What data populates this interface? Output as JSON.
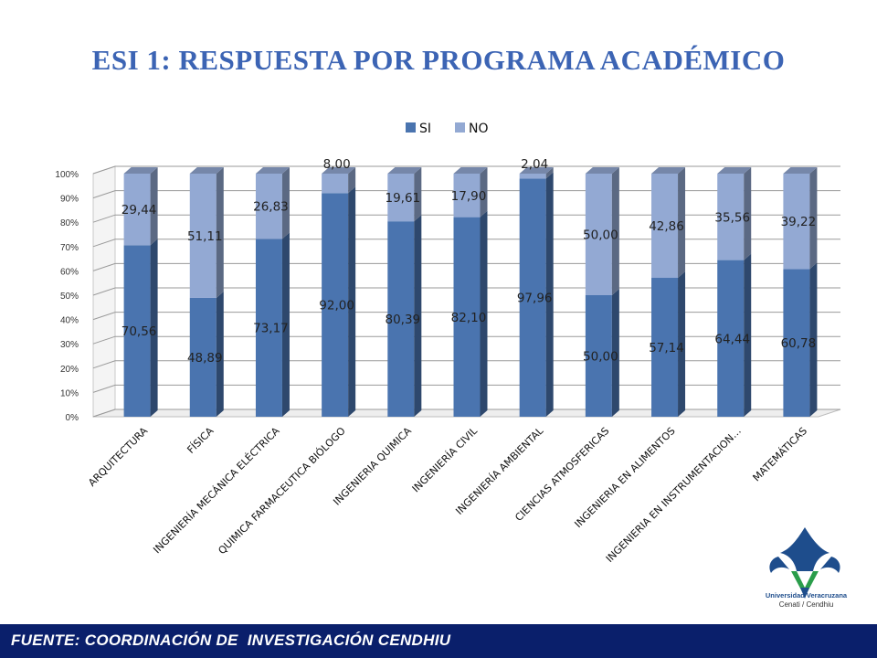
{
  "title": "ESI 1: RESPUESTA POR PROGRAMA ACADÉMICO",
  "footer": "FUENTE: COORDINACIÓN DE  INVESTIGACIÓN CENDHIU",
  "logo": {
    "line1": "Universidad Veracruzana",
    "line2": "Cenati / Cendhiu"
  },
  "colors": {
    "si": "#4A74AF",
    "no": "#93A9D3",
    "title": "#3C64B4",
    "footer_bg": "#0A1F6B"
  },
  "chart_data": {
    "type": "bar",
    "stacked": "percent",
    "legend_position": "top",
    "grid": true,
    "ylim": [
      0,
      100
    ],
    "y_ticks": [
      "0%",
      "10%",
      "20%",
      "30%",
      "40%",
      "50%",
      "60%",
      "70%",
      "80%",
      "90%",
      "100%"
    ],
    "categories": [
      "ARQUITECTURA",
      "FÍSICA",
      "INGENIERÍA MECÁNICA ELÉCTRICA",
      "QUIMICA FARMACEUTICA BIÓLOGO",
      "INGENIERIA QUIMICA",
      "INGENIERÍA CIVIL",
      "INGENIERÍA AMBIENTAL",
      "CIENCIAS ATMOSFERICAS",
      "INGENIERIA EN ALIMENTOS",
      "INGENIERIA EN INSTRUMENTACION…",
      "MATEMÁTICAS"
    ],
    "series": [
      {
        "name": "SI",
        "values": [
          70.56,
          48.89,
          73.17,
          92.0,
          80.39,
          82.1,
          97.96,
          50.0,
          57.14,
          64.44,
          60.78
        ],
        "labels": [
          "70,56",
          "48,89",
          "73,17",
          "92,00",
          "80,39",
          "82,10",
          "97,96",
          "50,00",
          "57,14",
          "64,44",
          "60,78"
        ]
      },
      {
        "name": "NO",
        "values": [
          29.44,
          51.11,
          26.83,
          8.0,
          19.61,
          17.9,
          2.04,
          50.0,
          42.86,
          35.56,
          39.22
        ],
        "labels": [
          "29,44",
          "51,11",
          "26,83",
          "8,00",
          "19,61",
          "17,90",
          "2,04",
          "50,00",
          "42,86",
          "35,56",
          "39,22"
        ]
      }
    ]
  }
}
